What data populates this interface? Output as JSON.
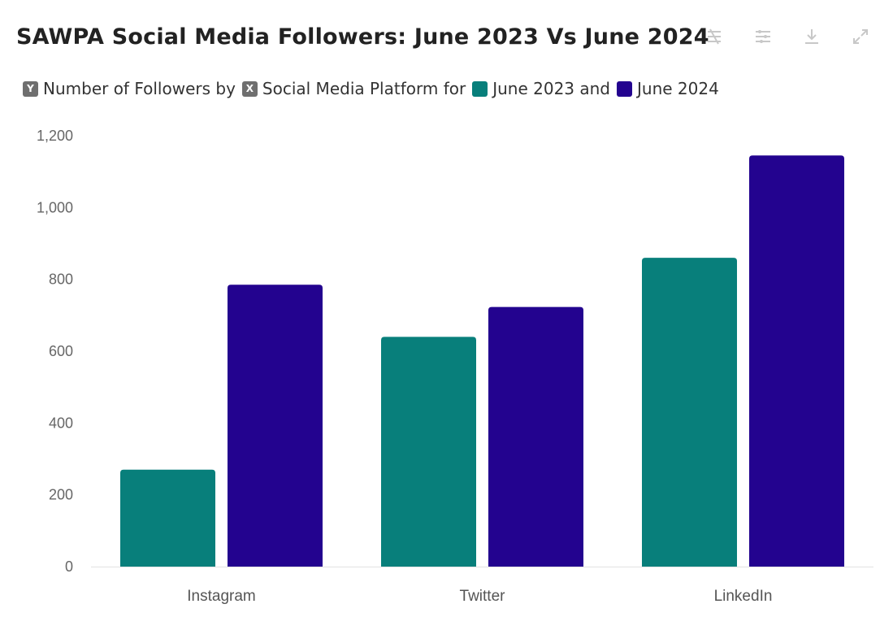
{
  "header": {
    "title": "SAWPA Social Media Followers: June 2023 Vs June 2024"
  },
  "toolbar": {
    "icons": [
      "pan-icon",
      "filter-icon",
      "download-icon",
      "expand-icon"
    ]
  },
  "subtitle": {
    "y_tag": "Y",
    "part1": "Number of Followers by",
    "x_tag": "X",
    "part2": "Social Media Platform for",
    "series1": "June 2023 and",
    "series2": "June 2024"
  },
  "colors": {
    "june_2023": "#087f7b",
    "june_2024": "#23038f"
  },
  "chart_data": {
    "type": "bar",
    "categories": [
      "Instagram",
      "Twitter",
      "LinkedIn"
    ],
    "series": [
      {
        "name": "June 2023",
        "values": [
          270,
          640,
          860
        ]
      },
      {
        "name": "June 2024",
        "values": [
          785,
          723,
          1145
        ]
      }
    ],
    "ylim": [
      0,
      1200
    ],
    "yticks": [
      0,
      200,
      400,
      600,
      800,
      1000,
      1200
    ],
    "ytick_labels": [
      "0",
      "200",
      "400",
      "600",
      "800",
      "1,000",
      "1,200"
    ],
    "grid": false,
    "legend": "inline-subtitle"
  }
}
